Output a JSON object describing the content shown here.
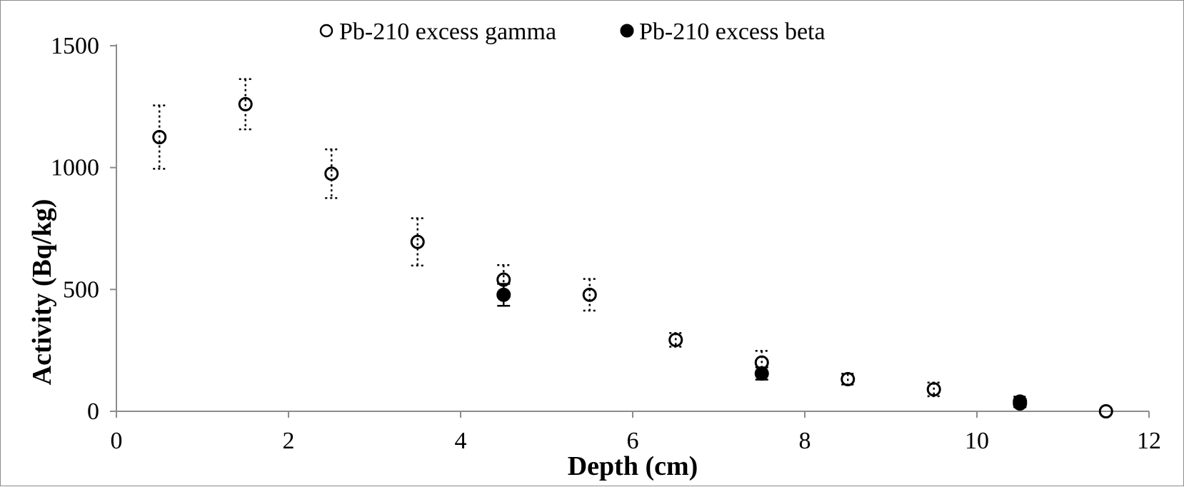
{
  "chart_data": {
    "type": "scatter",
    "title": "",
    "xlabel": "Depth (cm)",
    "ylabel": "Activity (Bq/kg)",
    "xlim": [
      0,
      12
    ],
    "ylim": [
      0,
      1500
    ],
    "xticks": [
      0,
      2,
      4,
      6,
      8,
      10,
      12
    ],
    "yticks": [
      0,
      500,
      1000,
      1500
    ],
    "grid": false,
    "legend_position": "top-center",
    "series": [
      {
        "name": "Pb-210 excess gamma",
        "marker": "open-circle",
        "error_bar_style": "dotted",
        "color": "#000000",
        "points": [
          {
            "x": 0.5,
            "y": 1125,
            "err": 130
          },
          {
            "x": 1.5,
            "y": 1260,
            "err": 103
          },
          {
            "x": 2.5,
            "y": 975,
            "err": 100
          },
          {
            "x": 3.5,
            "y": 695,
            "err": 97
          },
          {
            "x": 4.5,
            "y": 540,
            "err": 60
          },
          {
            "x": 5.5,
            "y": 478,
            "err": 65
          },
          {
            "x": 6.5,
            "y": 293,
            "err": 28
          },
          {
            "x": 7.5,
            "y": 200,
            "err": 48
          },
          {
            "x": 8.5,
            "y": 132,
            "err": 22
          },
          {
            "x": 9.5,
            "y": 90,
            "err": 28
          },
          {
            "x": 10.5,
            "y": 40,
            "err": 20
          },
          {
            "x": 11.5,
            "y": 0,
            "err": 0
          }
        ]
      },
      {
        "name": "Pb-210 excess beta",
        "marker": "filled-circle",
        "error_bar_style": "solid",
        "color": "#000000",
        "points": [
          {
            "x": 4.5,
            "y": 478,
            "err": 45
          },
          {
            "x": 7.5,
            "y": 155,
            "err": 25
          },
          {
            "x": 10.5,
            "y": 32,
            "err": 15
          }
        ]
      }
    ]
  }
}
